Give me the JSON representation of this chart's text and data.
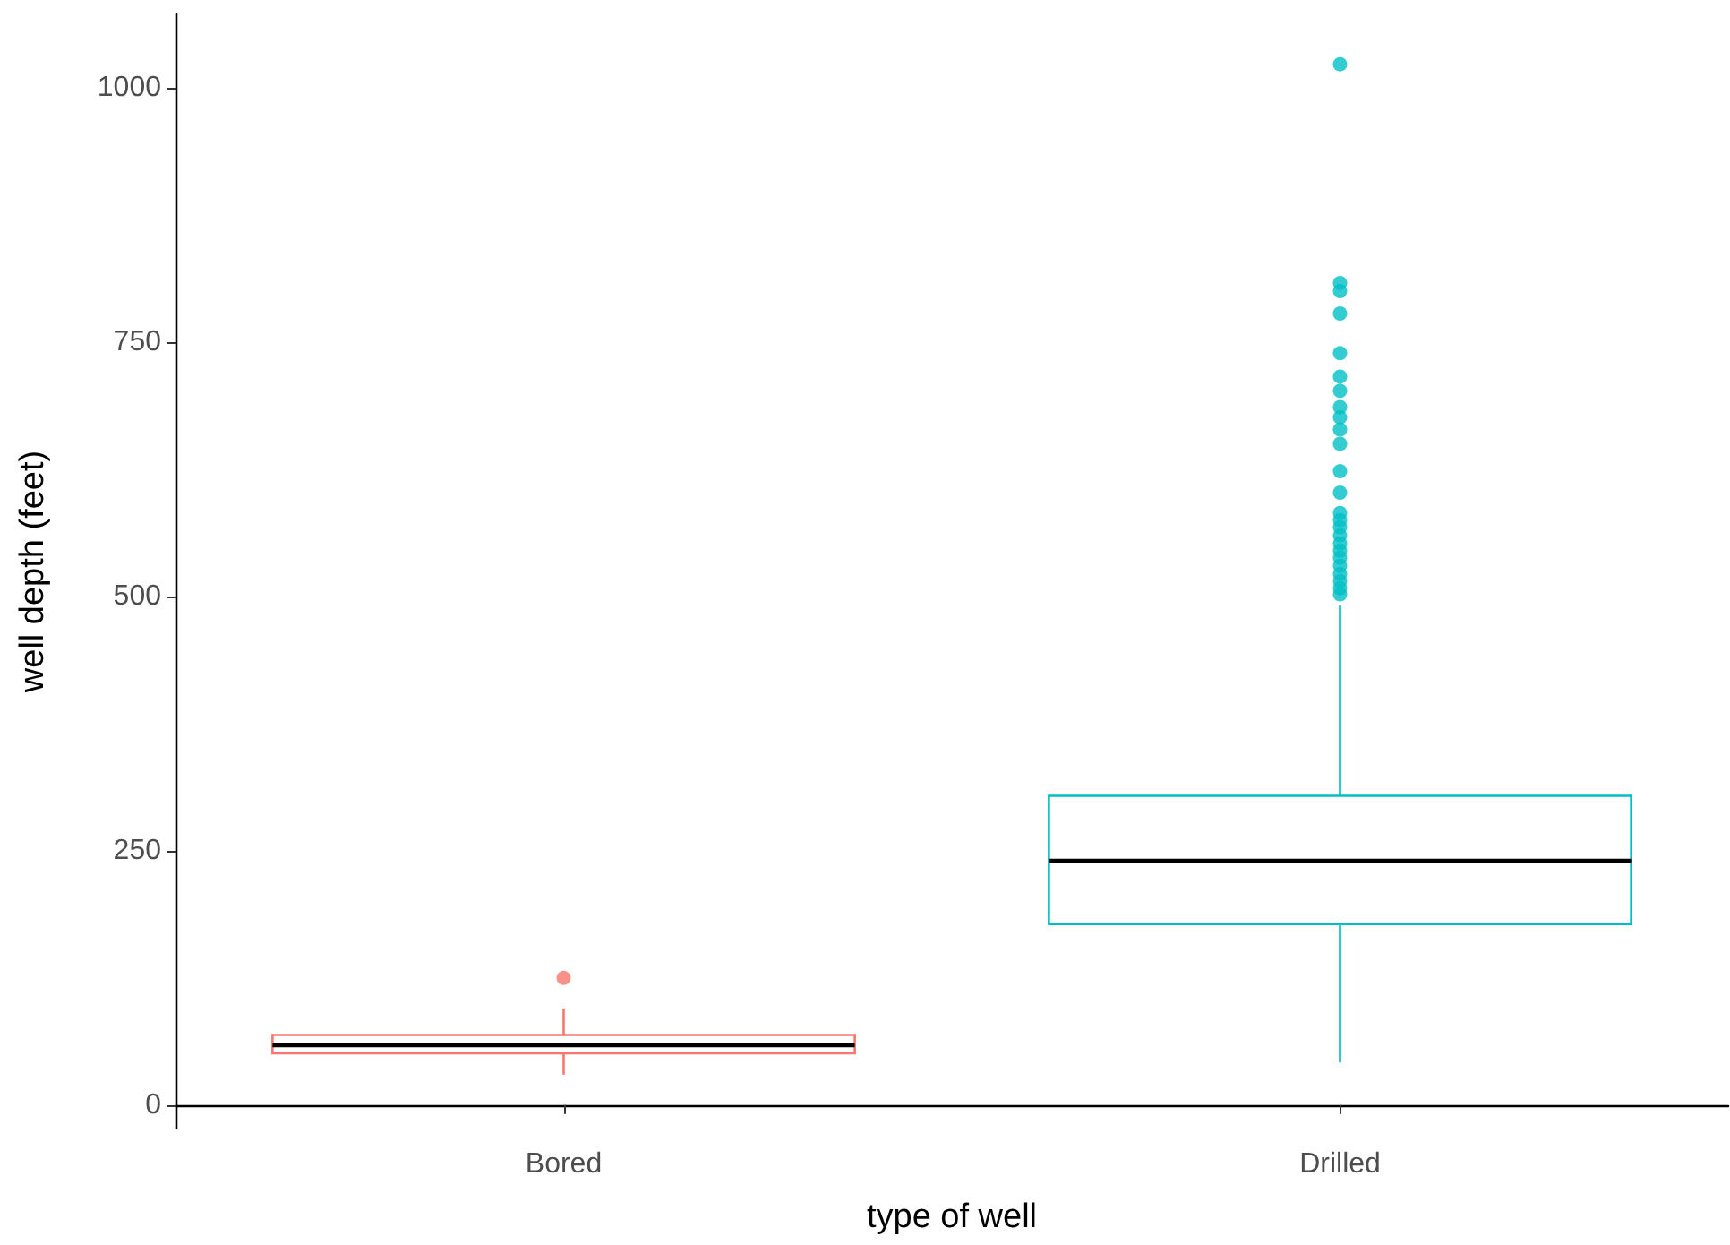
{
  "chart_data": {
    "type": "box",
    "xlabel": "type of well",
    "ylabel": "well depth (feet)",
    "categories": [
      "Bored",
      "Drilled"
    ],
    "colors": [
      "#f8766d",
      "#00bfc4"
    ],
    "boxes": [
      {
        "low": 30,
        "q1": 51,
        "median": 59,
        "q3": 69,
        "high": 95,
        "outliers": [
          125
        ]
      },
      {
        "low": 42,
        "q1": 178,
        "median": 240,
        "q3": 304,
        "high": 491,
        "outliers": [
          1023,
          808,
          800,
          778,
          739,
          716,
          702,
          686,
          676,
          664,
          650,
          623,
          602,
          582,
          575,
          568,
          560,
          552,
          545,
          538,
          530,
          522,
          515,
          508,
          502
        ]
      }
    ],
    "ylim": [
      -23,
      1072
    ],
    "yticks": [
      0,
      250,
      500,
      750,
      1000
    ],
    "grid": false
  }
}
